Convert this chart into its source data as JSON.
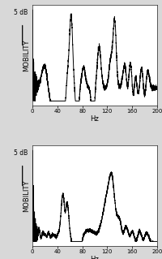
{
  "background_color": "#d8d8d8",
  "panel_bg": "#ffffff",
  "xlim": [
    0,
    200
  ],
  "xticks": [
    0,
    40,
    80,
    120,
    160,
    200
  ],
  "xlabel": "Hz",
  "ylabel": "MOBILITY",
  "scale_label": "5 dB",
  "linecolor": "#000000",
  "linewidth": 0.7
}
